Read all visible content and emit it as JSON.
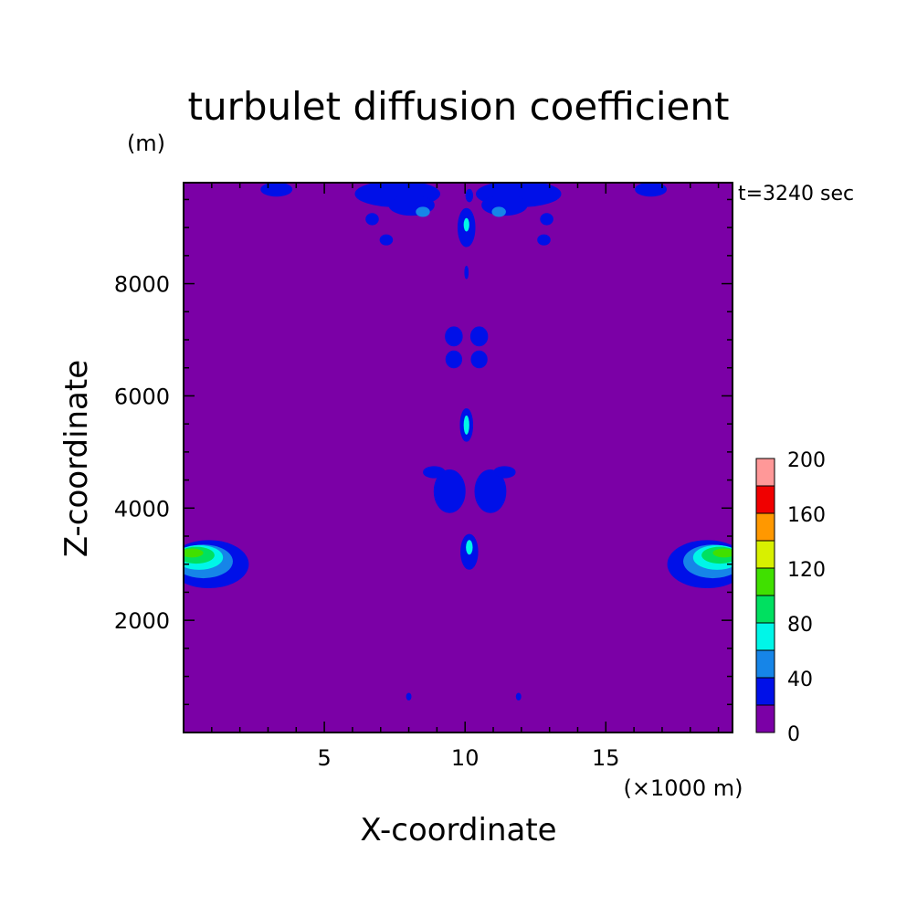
{
  "chart_data": {
    "type": "heatmap",
    "title": "turbulet diffusion coefficient",
    "time_label": "t=3240 sec",
    "xlabel": "X-coordinate",
    "x_unit": "(×1000 m)",
    "ylabel": "Z-coordinate",
    "y_unit": "(m)",
    "xlim": [
      0,
      19.5
    ],
    "ylim": [
      0,
      9800
    ],
    "x_ticks": [
      5,
      10,
      15
    ],
    "y_ticks": [
      2000,
      4000,
      6000,
      8000
    ],
    "colorbar": {
      "levels": [
        0,
        20,
        40,
        60,
        80,
        100,
        120,
        140,
        160,
        180,
        200
      ],
      "tick_labels": [
        "0",
        "40",
        "80",
        "120",
        "160",
        "200"
      ],
      "colors": [
        "#7B00A6",
        "#0010E8",
        "#1685E8",
        "#00F6E8",
        "#00E060",
        "#40E000",
        "#D8F000",
        "#FF9800",
        "#F00000",
        "#FF9898"
      ]
    },
    "background_value": 0,
    "features": [
      {
        "level": 1,
        "shape": "ellipse",
        "cx": 0.9,
        "cz": 3000,
        "rx": 1.4,
        "rz": 420
      },
      {
        "level": 2,
        "shape": "ellipse",
        "cx": 0.7,
        "cz": 3050,
        "rx": 1.05,
        "rz": 300
      },
      {
        "level": 3,
        "shape": "ellipse",
        "cx": 0.55,
        "cz": 3120,
        "rx": 0.85,
        "rz": 220
      },
      {
        "level": 4,
        "shape": "ellipse",
        "cx": 0.45,
        "cz": 3160,
        "rx": 0.65,
        "rz": 150
      },
      {
        "level": 5,
        "shape": "ellipse",
        "cx": 0.3,
        "cz": 3200,
        "rx": 0.4,
        "rz": 80
      },
      {
        "level": 1,
        "shape": "ellipse",
        "cx": 18.6,
        "cz": 3000,
        "rx": 1.4,
        "rz": 420
      },
      {
        "level": 2,
        "shape": "ellipse",
        "cx": 18.8,
        "cz": 3050,
        "rx": 1.05,
        "rz": 300
      },
      {
        "level": 3,
        "shape": "ellipse",
        "cx": 18.95,
        "cz": 3120,
        "rx": 0.85,
        "rz": 220
      },
      {
        "level": 4,
        "shape": "ellipse",
        "cx": 19.05,
        "cz": 3160,
        "rx": 0.65,
        "rz": 150
      },
      {
        "level": 5,
        "shape": "ellipse",
        "cx": 19.2,
        "cz": 3200,
        "rx": 0.4,
        "rz": 80
      },
      {
        "level": 1,
        "shape": "ellipse",
        "cx": 3.3,
        "cz": 9680,
        "rx": 0.55,
        "rz": 120
      },
      {
        "level": 1,
        "shape": "ellipse",
        "cx": 16.6,
        "cz": 9680,
        "rx": 0.55,
        "rz": 120
      },
      {
        "level": 1,
        "shape": "ellipse",
        "cx": 7.6,
        "cz": 9600,
        "rx": 1.5,
        "rz": 230
      },
      {
        "level": 1,
        "shape": "ellipse",
        "cx": 8.1,
        "cz": 9400,
        "rx": 0.8,
        "rz": 180
      },
      {
        "level": 1,
        "shape": "ellipse",
        "cx": 6.7,
        "cz": 9150,
        "rx": 0.22,
        "rz": 100
      },
      {
        "level": 1,
        "shape": "ellipse",
        "cx": 7.2,
        "cz": 8780,
        "rx": 0.22,
        "rz": 90
      },
      {
        "level": 1,
        "shape": "ellipse",
        "cx": 11.9,
        "cz": 9600,
        "rx": 1.5,
        "rz": 230
      },
      {
        "level": 1,
        "shape": "ellipse",
        "cx": 11.4,
        "cz": 9400,
        "rx": 0.8,
        "rz": 180
      },
      {
        "level": 1,
        "shape": "ellipse",
        "cx": 12.9,
        "cz": 9150,
        "rx": 0.22,
        "rz": 100
      },
      {
        "level": 1,
        "shape": "ellipse",
        "cx": 12.8,
        "cz": 8780,
        "rx": 0.22,
        "rz": 90
      },
      {
        "level": 2,
        "shape": "ellipse",
        "cx": 8.5,
        "cz": 9280,
        "rx": 0.25,
        "rz": 90
      },
      {
        "level": 2,
        "shape": "ellipse",
        "cx": 11.2,
        "cz": 9280,
        "rx": 0.25,
        "rz": 90
      },
      {
        "level": 1,
        "shape": "ellipse",
        "cx": 10.15,
        "cz": 9570,
        "rx": 0.12,
        "rz": 110
      },
      {
        "level": 1,
        "shape": "ellipse",
        "cx": 10.05,
        "cz": 9000,
        "rx": 0.3,
        "rz": 340
      },
      {
        "level": 3,
        "shape": "ellipse",
        "cx": 10.05,
        "cz": 9050,
        "rx": 0.1,
        "rz": 120
      },
      {
        "level": 1,
        "shape": "ellipse",
        "cx": 10.05,
        "cz": 8200,
        "rx": 0.06,
        "rz": 110
      },
      {
        "level": 1,
        "shape": "ellipse",
        "cx": 9.6,
        "cz": 7060,
        "rx": 0.3,
        "rz": 170
      },
      {
        "level": 1,
        "shape": "ellipse",
        "cx": 10.5,
        "cz": 7060,
        "rx": 0.3,
        "rz": 170
      },
      {
        "level": 1,
        "shape": "ellipse",
        "cx": 9.6,
        "cz": 6650,
        "rx": 0.28,
        "rz": 150
      },
      {
        "level": 1,
        "shape": "ellipse",
        "cx": 10.5,
        "cz": 6650,
        "rx": 0.28,
        "rz": 150
      },
      {
        "level": 1,
        "shape": "ellipse",
        "cx": 10.05,
        "cz": 5480,
        "rx": 0.22,
        "rz": 290
      },
      {
        "level": 3,
        "shape": "ellipse",
        "cx": 10.05,
        "cz": 5480,
        "rx": 0.1,
        "rz": 170
      },
      {
        "level": 1,
        "shape": "ellipse",
        "cx": 9.45,
        "cz": 4300,
        "rx": 0.55,
        "rz": 380
      },
      {
        "level": 1,
        "shape": "ellipse",
        "cx": 10.9,
        "cz": 4300,
        "rx": 0.55,
        "rz": 380
      },
      {
        "level": 1,
        "shape": "ellipse",
        "cx": 8.9,
        "cz": 4640,
        "rx": 0.38,
        "rz": 100
      },
      {
        "level": 1,
        "shape": "ellipse",
        "cx": 11.4,
        "cz": 4640,
        "rx": 0.38,
        "rz": 100
      },
      {
        "level": 1,
        "shape": "ellipse",
        "cx": 10.15,
        "cz": 3220,
        "rx": 0.3,
        "rz": 310
      },
      {
        "level": 3,
        "shape": "ellipse",
        "cx": 10.15,
        "cz": 3300,
        "rx": 0.12,
        "rz": 130
      },
      {
        "level": 1,
        "shape": "ellipse",
        "cx": 8.0,
        "cz": 640,
        "rx": 0.08,
        "rz": 60
      },
      {
        "level": 1,
        "shape": "ellipse",
        "cx": 11.9,
        "cz": 640,
        "rx": 0.08,
        "rz": 60
      }
    ]
  }
}
